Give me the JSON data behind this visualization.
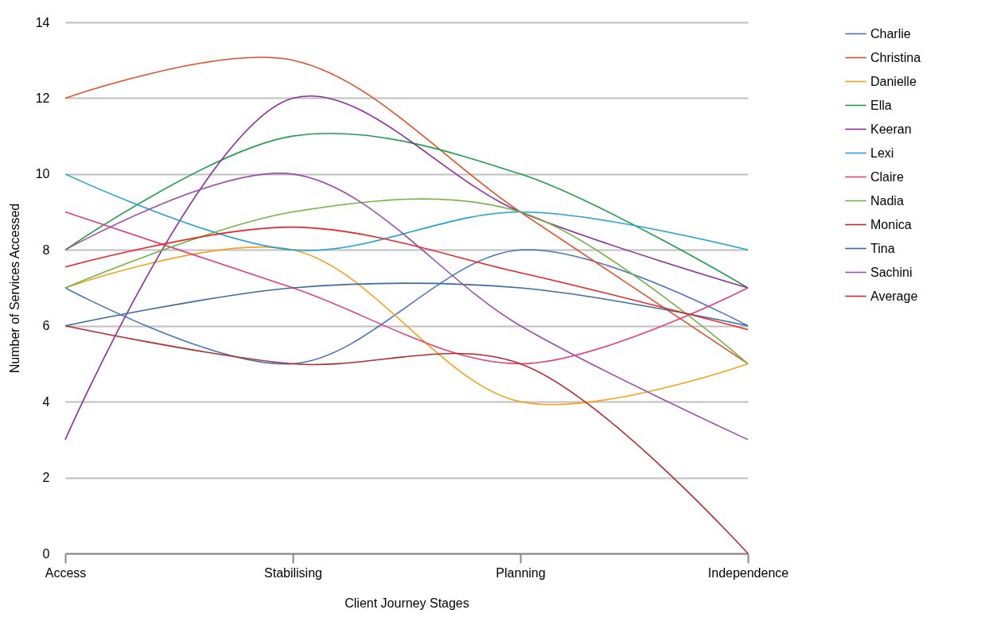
{
  "chart_data": {
    "type": "line",
    "xlabel": "Client Journey Stages",
    "ylabel": "Number of Services Accessed",
    "categories": [
      "Access",
      "Stabilising",
      "Planning",
      "Independence"
    ],
    "ylim": [
      0,
      14
    ],
    "yticks": [
      0,
      2,
      4,
      6,
      8,
      10,
      12,
      14
    ],
    "grid": "y",
    "legend": "right",
    "marker": "none",
    "series": [
      {
        "name": "Charlie",
        "color": "#4472c4",
        "values": [
          7,
          5,
          8,
          6
        ]
      },
      {
        "name": "Christina",
        "color": "#e84c22",
        "values": [
          12,
          13,
          9,
          5
        ]
      },
      {
        "name": "Danielle",
        "color": "#f7a11a",
        "values": [
          7,
          8,
          4,
          5
        ]
      },
      {
        "name": "Ella",
        "color": "#1e9e48",
        "values": [
          8,
          11,
          10,
          7
        ]
      },
      {
        "name": "Keeran",
        "color": "#8e2a9e",
        "values": [
          3,
          12,
          9,
          7
        ]
      },
      {
        "name": "Lexi",
        "color": "#1ea0d8",
        "values": [
          10,
          8,
          9,
          8
        ]
      },
      {
        "name": "Claire",
        "color": "#e33f7a",
        "values": [
          9,
          7,
          5,
          7
        ]
      },
      {
        "name": "Nadia",
        "color": "#70b443",
        "values": [
          7,
          9,
          9,
          5
        ]
      },
      {
        "name": "Monica",
        "color": "#b52a2a",
        "values": [
          6,
          5,
          5,
          0
        ]
      },
      {
        "name": "Tina",
        "color": "#3b6aa0",
        "values": [
          6,
          7,
          7,
          6
        ]
      },
      {
        "name": "Sachini",
        "color": "#9b4fa8",
        "values": [
          8,
          10,
          6,
          3
        ]
      },
      {
        "name": "Average",
        "color": "#ee2124",
        "values": [
          7.55,
          8.6,
          7.4,
          5.9
        ]
      }
    ]
  }
}
